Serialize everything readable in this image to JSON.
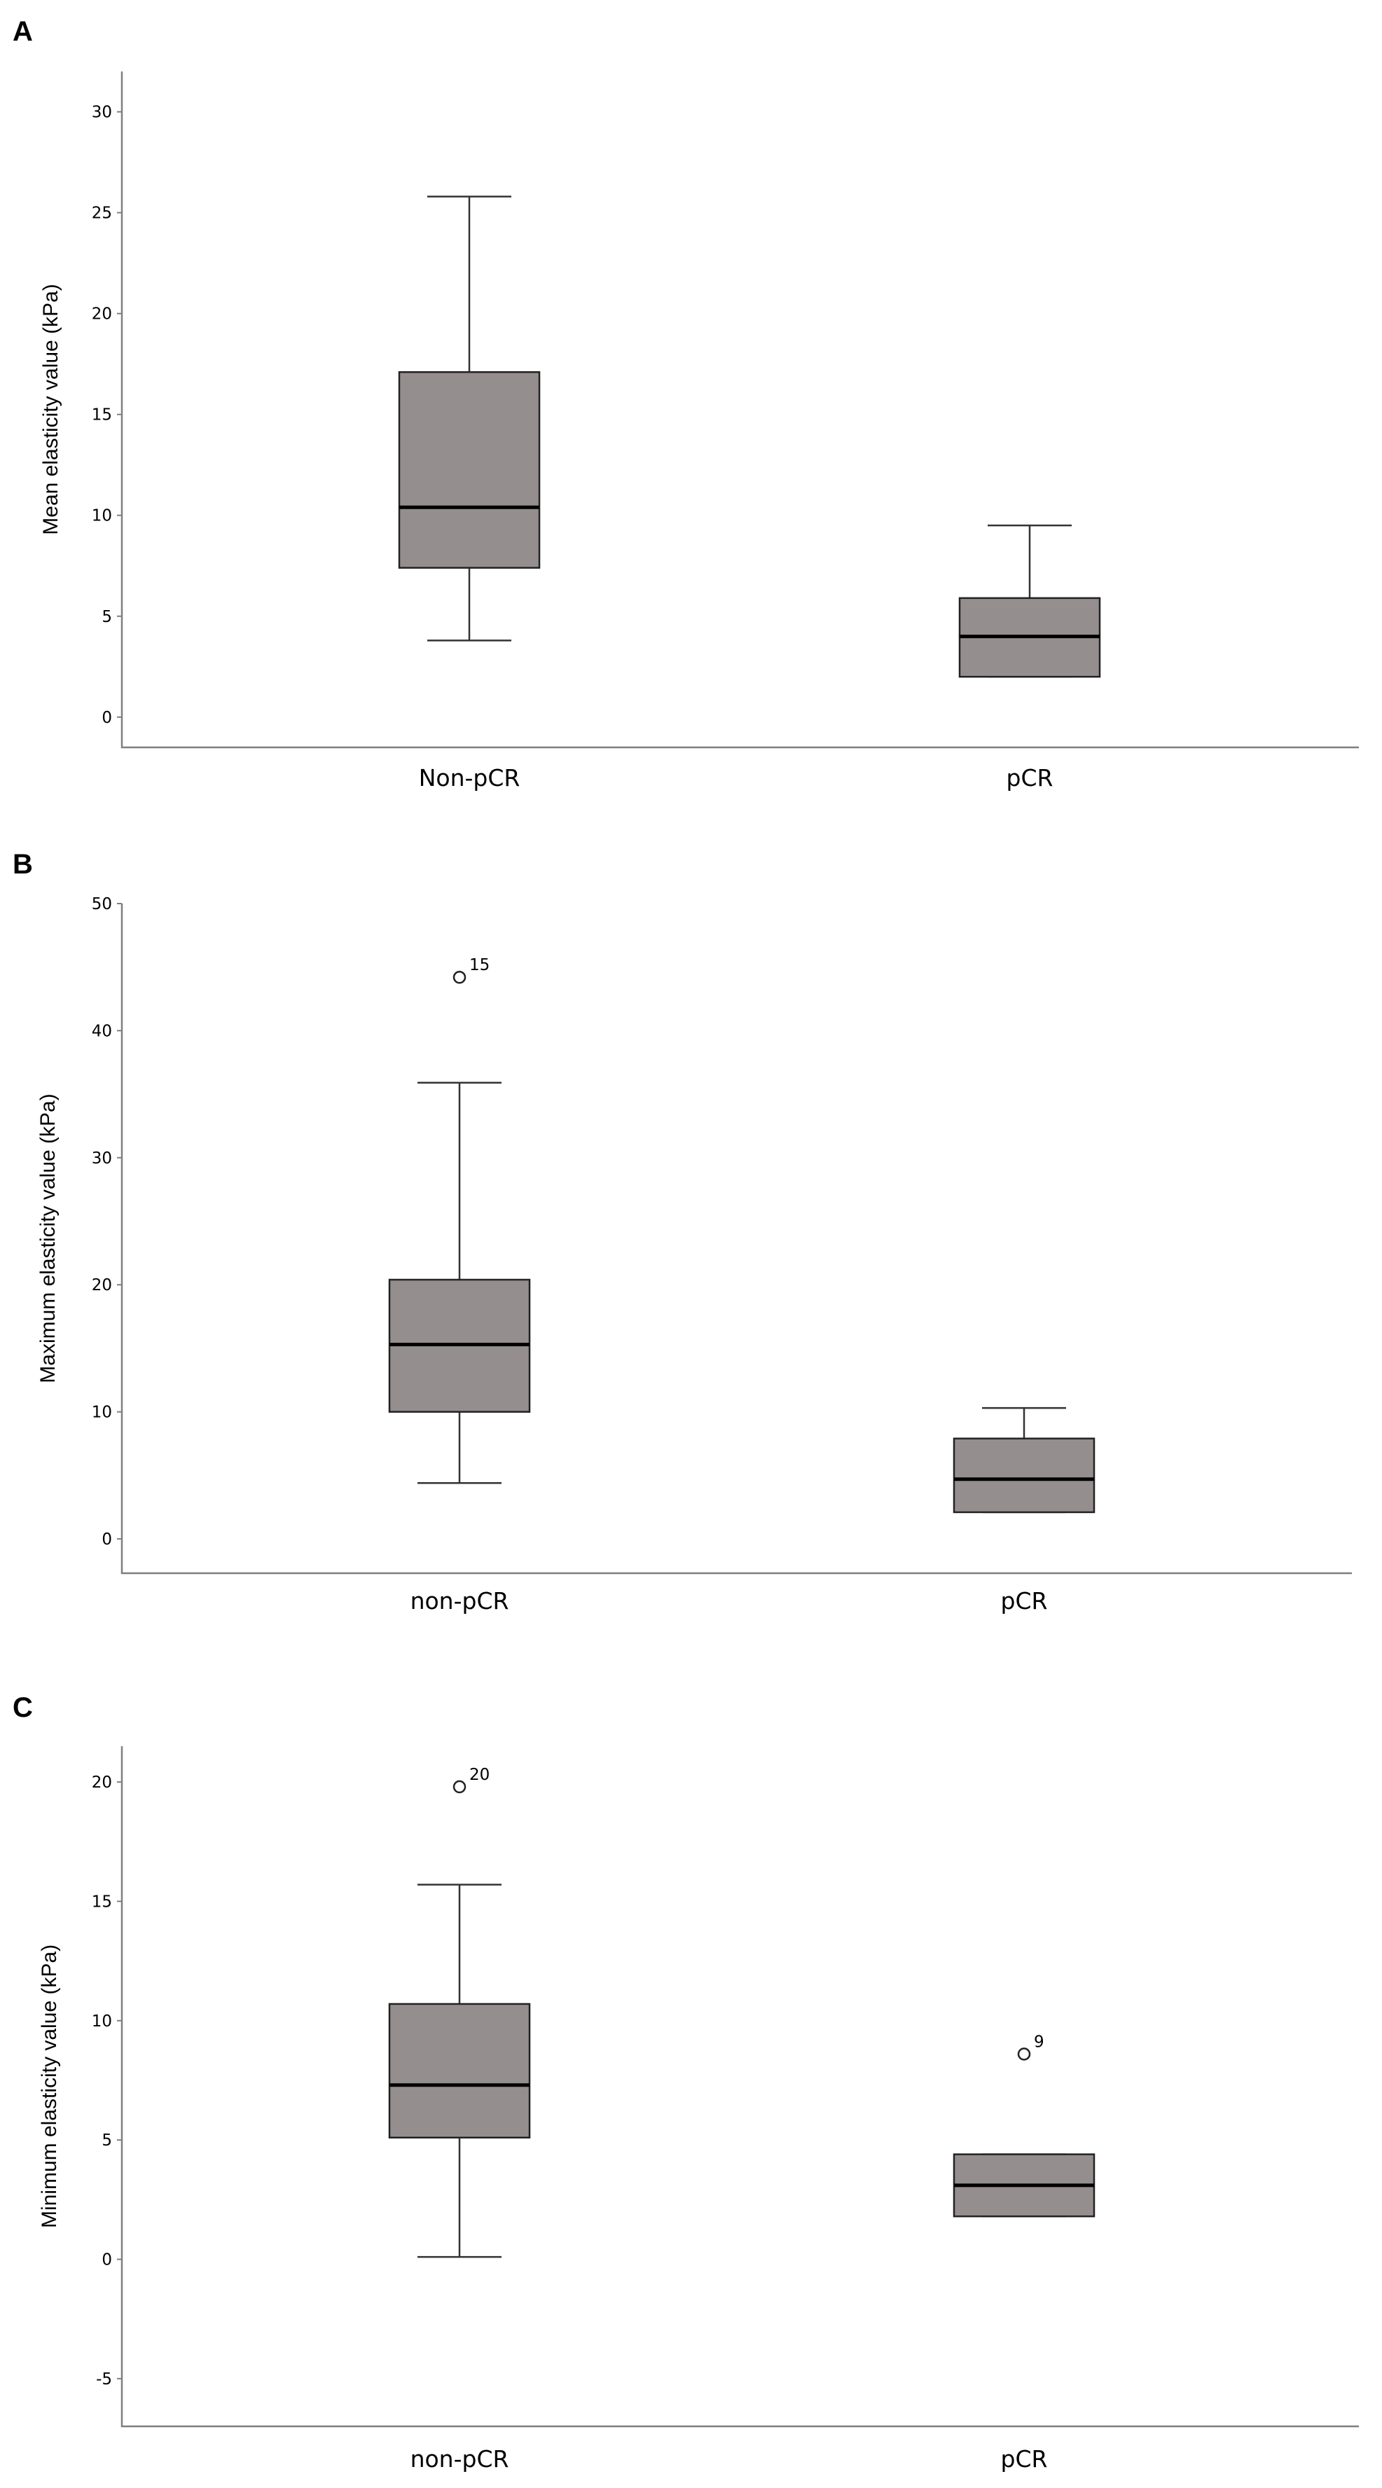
{
  "chart_data": [
    {
      "panel": "A",
      "type": "box",
      "ylabel": "Mean elasticity value (kPa)",
      "ylim": [
        -1.5,
        32
      ],
      "yticks": [
        0,
        5,
        10,
        15,
        20,
        25,
        30
      ],
      "grid": false,
      "box_color": "#958e8e",
      "categories": [
        {
          "label": "Non-pCR",
          "whisker_low": 3.8,
          "q1": 7.4,
          "median": 10.4,
          "q3": 17.1,
          "whisker_high": 25.8,
          "outliers": []
        },
        {
          "label": "pCR",
          "whisker_low": 2.0,
          "q1": 2.0,
          "median": 4.0,
          "q3": 5.9,
          "whisker_high": 9.5,
          "outliers": []
        }
      ]
    },
    {
      "panel": "B",
      "type": "box",
      "ylabel": "Maximum elasticity value (kPa)",
      "ylim": [
        -2.7,
        50
      ],
      "yticks": [
        0,
        10,
        20,
        30,
        40,
        50
      ],
      "grid": false,
      "box_color": "#958e8e",
      "categories": [
        {
          "label": "non-pCR",
          "whisker_low": 4.4,
          "q1": 10.0,
          "median": 15.3,
          "q3": 20.4,
          "whisker_high": 35.9,
          "outliers": [
            {
              "value": 44.2,
              "label": "15"
            }
          ]
        },
        {
          "label": "pCR",
          "whisker_low": 2.1,
          "q1": 2.1,
          "median": 4.7,
          "q3": 7.9,
          "whisker_high": 10.3,
          "outliers": []
        }
      ]
    },
    {
      "panel": "C",
      "type": "box",
      "ylabel": "Minimum elasticity value (kPa)",
      "ylim": [
        -7,
        21.5
      ],
      "yticks": [
        -5,
        0,
        5,
        10,
        15,
        20
      ],
      "grid": false,
      "box_color": "#958e8e",
      "categories": [
        {
          "label": "non-pCR",
          "whisker_low": 0.1,
          "q1": 5.1,
          "median": 7.3,
          "q3": 10.7,
          "whisker_high": 15.7,
          "outliers": [
            {
              "value": 19.8,
              "label": "20"
            }
          ]
        },
        {
          "label": "pCR",
          "whisker_low": 1.8,
          "q1": 1.8,
          "median": 3.1,
          "q3": 4.4,
          "whisker_high": 4.4,
          "outliers": [
            {
              "value": 8.6,
              "label": "9"
            }
          ]
        }
      ]
    }
  ]
}
